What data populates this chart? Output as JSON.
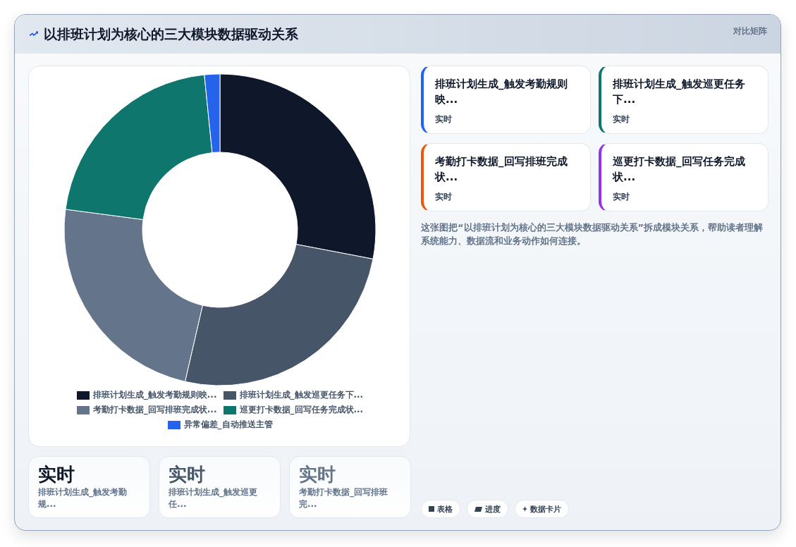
{
  "chart_data": [
    {
      "type": "donut",
      "title": "以排班计划为核心的三大模块数据驱动关系",
      "annotations": [
        "对比矩阵"
      ],
      "categories": [
        "排班计划生成_触发考勤规则映...",
        "排班计划生成_触发巡更任务下...",
        "考勤打卡数据_回写排班完成状...",
        "巡更打卡数据_回写任务完成状...",
        "异常偏差_自动推送主管"
      ],
      "values": [
        28.0,
        25.6,
        23.5,
        21.3,
        1.6
      ],
      "colors": [
        "#0f172a",
        "#475569",
        "#64748b",
        "#0f766e",
        "#2563eb"
      ],
      "legend": "bottom"
    },
    {
      "type": "other",
      "annotations": [
        "排班计划生成_触发考勤规则映...",
        "实时",
        "排班计划生成_触发巡更任务下...",
        "实时",
        "考勤打卡数据_回写排班完成状...",
        "实时",
        "巡更打卡数据_回写任务完成状...",
        "实时",
        "这张图把“以排班计划为核心的三大模块数据驱动关系”拆成模块关系，帮助读者理解系统能力、数据流和业务动作如何连接。",
        "实时",
        "排班计划生成_触发考勤规...",
        "实时",
        "排班计划生成_触发巡更任...",
        "实时",
        "考勤打卡数据_回写排班完...",
        "表格",
        "进度",
        "数据卡片"
      ]
    }
  ]
}
